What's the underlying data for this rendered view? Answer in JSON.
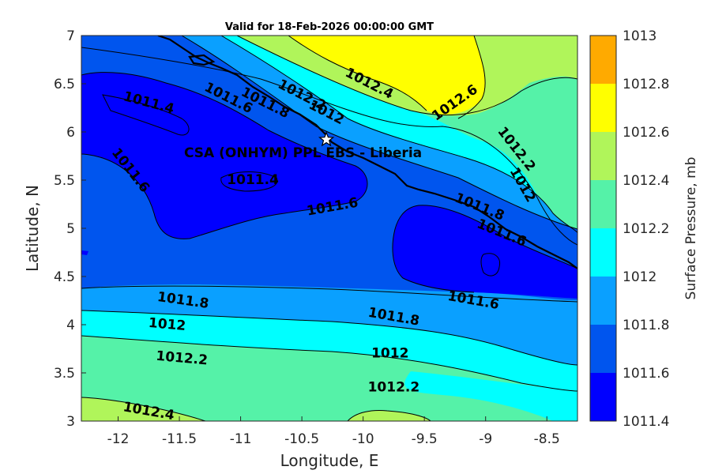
{
  "title": "Valid for 18-Feb-2026 00:00:00 GMT",
  "site_label": "CSA (ONHYM) PPL EBS  - Liberia",
  "site_marker_icon": "star-icon",
  "site_location": {
    "lon": -10.3,
    "lat": 5.92
  },
  "x_axis": {
    "label": "Longitude, E",
    "range": [
      -12.3,
      -8.25
    ],
    "ticks": [
      -12,
      -11.5,
      -11,
      -10.5,
      -10,
      -9.5,
      -9,
      -8.5
    ]
  },
  "y_axis": {
    "label": "Latitude, N",
    "range": [
      3,
      7
    ],
    "ticks": [
      3,
      3.5,
      4,
      4.5,
      5,
      5.5,
      6,
      6.5,
      7
    ]
  },
  "colorbar": {
    "label": "Surface Pressure, mb",
    "levels": [
      1011.4,
      1011.6,
      1011.8,
      1012,
      1012.2,
      1012.4,
      1012.6,
      1012.8,
      1013
    ],
    "colors": [
      "#0000ff",
      "#0055ee",
      "#0aa0ff",
      "#00ffff",
      "#55f2a8",
      "#b0f55a",
      "#ffff00",
      "#ffaa00",
      "#ff5500"
    ]
  },
  "contour_labels": [
    {
      "text": "1012.4",
      "lon": -9.95,
      "lat": 6.5,
      "angle": 27
    },
    {
      "text": "1012.2",
      "lon": -10.5,
      "lat": 6.38,
      "angle": 27
    },
    {
      "text": "1012",
      "lon": -10.3,
      "lat": 6.2,
      "angle": 27
    },
    {
      "text": "1012.6",
      "lon": -9.25,
      "lat": 6.3,
      "angle": -35
    },
    {
      "text": "1011.6",
      "lon": -11.1,
      "lat": 6.35,
      "angle": 27
    },
    {
      "text": "1011.8",
      "lon": -10.8,
      "lat": 6.3,
      "angle": 27
    },
    {
      "text": "1011.4",
      "lon": -11.75,
      "lat": 6.3,
      "angle": 15
    },
    {
      "text": "1011.6",
      "lon": -11.9,
      "lat": 5.6,
      "angle": 52
    },
    {
      "text": "1011.4",
      "lon": -10.9,
      "lat": 5.5,
      "angle": 0
    },
    {
      "text": "1011.6",
      "lon": -10.25,
      "lat": 5.22,
      "angle": -10
    },
    {
      "text": "1012.2",
      "lon": -8.75,
      "lat": 5.82,
      "angle": 52
    },
    {
      "text": "1012",
      "lon": -8.7,
      "lat": 5.45,
      "angle": 60
    },
    {
      "text": "1011.8",
      "lon": -9.05,
      "lat": 5.22,
      "angle": 22
    },
    {
      "text": "1011.6",
      "lon": -8.87,
      "lat": 4.95,
      "angle": 22
    },
    {
      "text": "1011.8",
      "lon": -11.47,
      "lat": 4.25,
      "angle": 8
    },
    {
      "text": "1012",
      "lon": -11.6,
      "lat": 4.0,
      "angle": 5
    },
    {
      "text": "1012.2",
      "lon": -11.48,
      "lat": 3.65,
      "angle": 5
    },
    {
      "text": "1011.8",
      "lon": -9.75,
      "lat": 4.08,
      "angle": 10
    },
    {
      "text": "1011.6",
      "lon": -9.1,
      "lat": 4.25,
      "angle": 10
    },
    {
      "text": "1012",
      "lon": -9.78,
      "lat": 3.7,
      "angle": 0
    },
    {
      "text": "1012.2",
      "lon": -9.75,
      "lat": 3.35,
      "angle": 0
    },
    {
      "text": "1012.4",
      "lon": -11.75,
      "lat": 3.1,
      "angle": 10
    }
  ]
}
